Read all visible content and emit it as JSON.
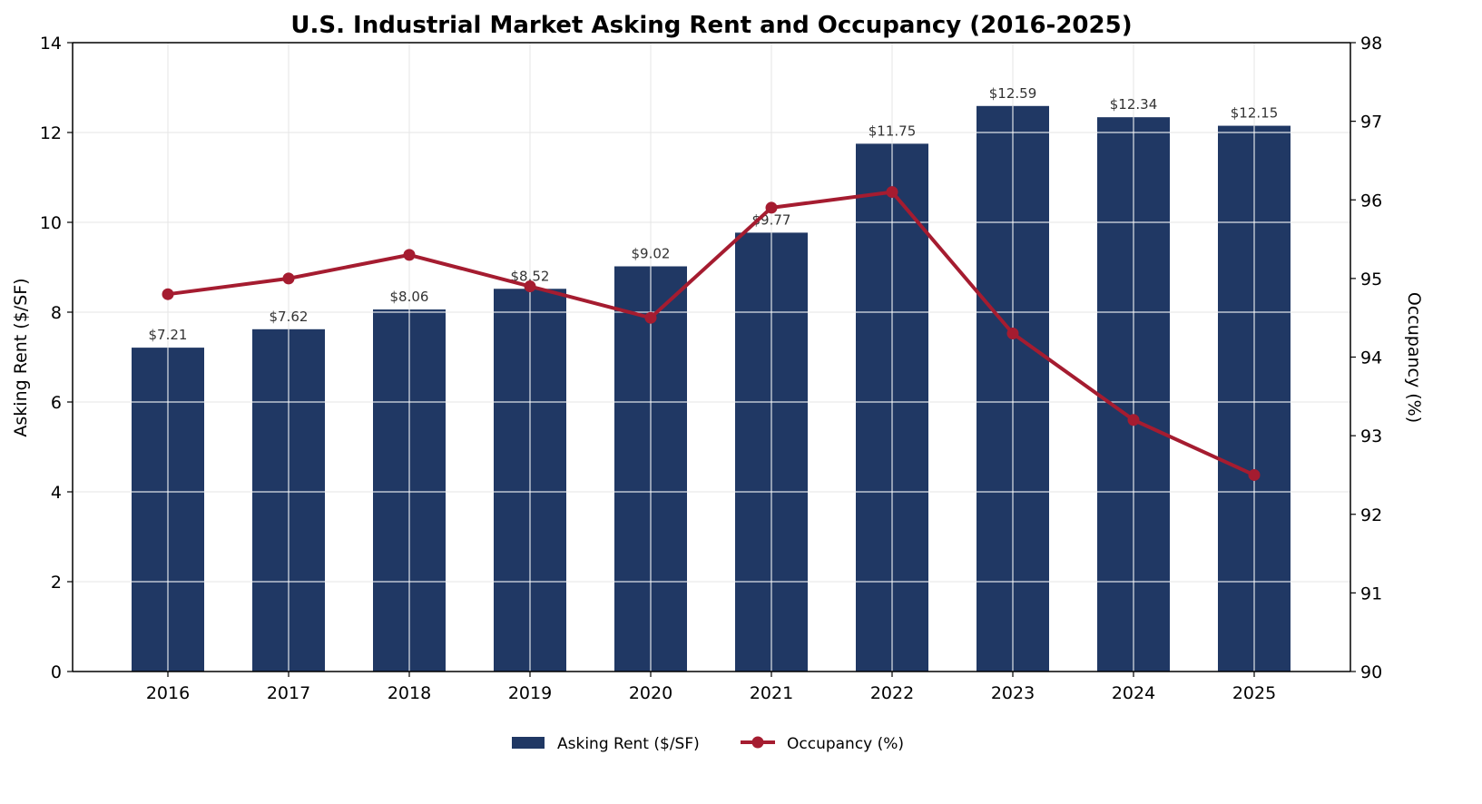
{
  "chart_data": {
    "type": "bar",
    "title": "U.S. Industrial Market Asking Rent and Occupancy (2016-2025)",
    "categories": [
      "2016",
      "2017",
      "2018",
      "2019",
      "2020",
      "2021",
      "2022",
      "2023",
      "2024",
      "2025"
    ],
    "series": [
      {
        "name": "Asking Rent ($/SF)",
        "type": "bar",
        "axis": "left",
        "color": "#203864",
        "values": [
          7.21,
          7.62,
          8.06,
          8.52,
          9.02,
          9.77,
          11.75,
          12.59,
          12.34,
          12.15
        ],
        "labels": [
          "$7.21",
          "$7.62",
          "$8.06",
          "$8.52",
          "$9.02",
          "$9.77",
          "$11.75",
          "$12.59",
          "$12.34",
          "$12.15"
        ]
      },
      {
        "name": "Occupancy (%)",
        "type": "line",
        "axis": "right",
        "color": "#A51C30",
        "marker": "circle",
        "values": [
          94.8,
          95.0,
          95.3,
          94.9,
          94.5,
          95.9,
          96.1,
          94.3,
          93.2,
          92.5
        ]
      }
    ],
    "ylabel": "Asking Rent ($/SF)",
    "ylim": [
      0,
      14
    ],
    "yticks": [
      "0",
      "2",
      "4",
      "6",
      "8",
      "10",
      "12",
      "14"
    ],
    "y2label": "Occupancy (%)",
    "y2lim": [
      90,
      98
    ],
    "y2ticks": [
      "90",
      "91",
      "92",
      "93",
      "94",
      "95",
      "96",
      "97",
      "98"
    ],
    "grid": true,
    "legend": {
      "placement": "bottom-center",
      "items": [
        "Asking Rent ($/SF)",
        "Occupancy (%)"
      ]
    }
  }
}
